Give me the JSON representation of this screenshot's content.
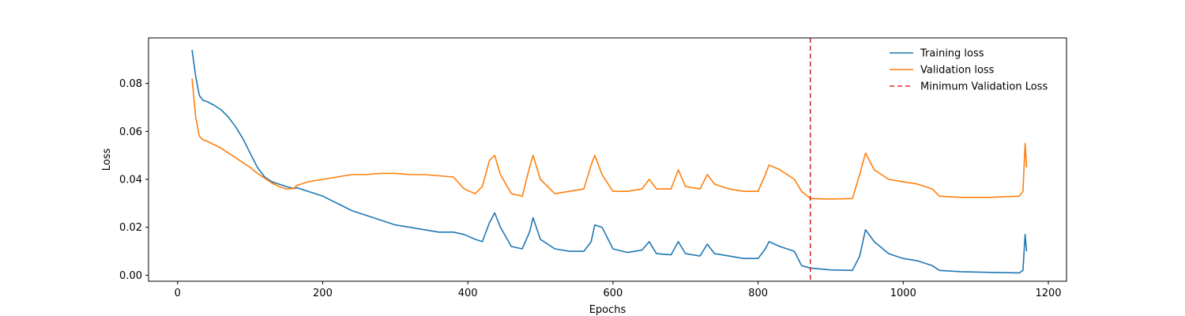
{
  "chart_data": {
    "type": "line",
    "title": "",
    "xlabel": "Epochs",
    "ylabel": "Loss",
    "xlim": [
      -40,
      1225
    ],
    "ylim": [
      -0.0025,
      0.099
    ],
    "xticks": [
      0,
      200,
      400,
      600,
      800,
      1000,
      1200
    ],
    "xtick_labels": [
      "0",
      "200",
      "400",
      "600",
      "800",
      "1000",
      "1200"
    ],
    "yticks": [
      0.0,
      0.02,
      0.04,
      0.06,
      0.08
    ],
    "ytick_labels": [
      "0.00",
      "0.02",
      "0.04",
      "0.06",
      "0.08"
    ],
    "grid": false,
    "legend_position": "top-right",
    "series": [
      {
        "name": "Training loss",
        "color": "#1f77b4",
        "x": [
          20,
          25,
          30,
          35,
          40,
          50,
          60,
          70,
          80,
          90,
          100,
          110,
          120,
          130,
          140,
          150,
          160,
          165,
          180,
          200,
          220,
          240,
          260,
          280,
          300,
          320,
          340,
          360,
          380,
          395,
          410,
          420,
          430,
          437,
          445,
          460,
          475,
          485,
          490,
          500,
          520,
          540,
          560,
          570,
          575,
          585,
          600,
          620,
          640,
          650,
          660,
          680,
          690,
          700,
          720,
          730,
          740,
          760,
          780,
          800,
          810,
          815,
          830,
          850,
          860,
          872,
          900,
          930,
          940,
          948,
          960,
          980,
          1000,
          1020,
          1040,
          1050,
          1080,
          1120,
          1160,
          1165,
          1168,
          1170
        ],
        "y": [
          0.094,
          0.083,
          0.075,
          0.073,
          0.0725,
          0.071,
          0.069,
          0.066,
          0.062,
          0.057,
          0.051,
          0.045,
          0.041,
          0.039,
          0.038,
          0.037,
          0.0362,
          0.0365,
          0.035,
          0.033,
          0.03,
          0.027,
          0.025,
          0.023,
          0.021,
          0.02,
          0.019,
          0.018,
          0.018,
          0.017,
          0.015,
          0.014,
          0.022,
          0.026,
          0.02,
          0.012,
          0.011,
          0.018,
          0.024,
          0.015,
          0.011,
          0.01,
          0.01,
          0.014,
          0.021,
          0.02,
          0.011,
          0.0095,
          0.0105,
          0.014,
          0.009,
          0.0085,
          0.014,
          0.009,
          0.008,
          0.013,
          0.009,
          0.008,
          0.007,
          0.007,
          0.011,
          0.014,
          0.012,
          0.01,
          0.004,
          0.003,
          0.0022,
          0.002,
          0.008,
          0.019,
          0.014,
          0.009,
          0.007,
          0.006,
          0.004,
          0.002,
          0.0015,
          0.0012,
          0.001,
          0.002,
          0.017,
          0.01
        ]
      },
      {
        "name": "Validation loss",
        "color": "#ff7f0e",
        "x": [
          20,
          25,
          30,
          35,
          40,
          50,
          60,
          70,
          80,
          90,
          100,
          110,
          120,
          130,
          140,
          150,
          160,
          165,
          180,
          200,
          220,
          240,
          260,
          280,
          300,
          320,
          340,
          360,
          380,
          395,
          410,
          420,
          430,
          437,
          445,
          460,
          475,
          485,
          490,
          500,
          520,
          540,
          560,
          570,
          575,
          585,
          600,
          620,
          640,
          650,
          660,
          680,
          690,
          700,
          720,
          730,
          740,
          760,
          780,
          800,
          810,
          815,
          830,
          850,
          860,
          872,
          900,
          930,
          940,
          948,
          960,
          980,
          1000,
          1020,
          1040,
          1050,
          1080,
          1120,
          1160,
          1165,
          1168,
          1170
        ],
        "y": [
          0.082,
          0.066,
          0.058,
          0.0565,
          0.056,
          0.0545,
          0.053,
          0.051,
          0.049,
          0.047,
          0.045,
          0.0425,
          0.0405,
          0.0385,
          0.037,
          0.036,
          0.0362,
          0.0375,
          0.039,
          0.04,
          0.041,
          0.042,
          0.042,
          0.0425,
          0.0425,
          0.042,
          0.042,
          0.0415,
          0.041,
          0.036,
          0.034,
          0.037,
          0.048,
          0.05,
          0.042,
          0.034,
          0.033,
          0.045,
          0.05,
          0.04,
          0.034,
          0.035,
          0.036,
          0.046,
          0.05,
          0.042,
          0.035,
          0.035,
          0.036,
          0.04,
          0.036,
          0.036,
          0.044,
          0.037,
          0.036,
          0.042,
          0.038,
          0.036,
          0.035,
          0.035,
          0.042,
          0.046,
          0.044,
          0.04,
          0.035,
          0.032,
          0.0318,
          0.032,
          0.042,
          0.051,
          0.044,
          0.04,
          0.039,
          0.038,
          0.036,
          0.033,
          0.0325,
          0.0325,
          0.033,
          0.035,
          0.055,
          0.045
        ]
      }
    ],
    "vlines": [
      {
        "name": "Minimum Validation Loss",
        "x": 872,
        "color": "#d62728",
        "style": "dashed"
      }
    ]
  }
}
